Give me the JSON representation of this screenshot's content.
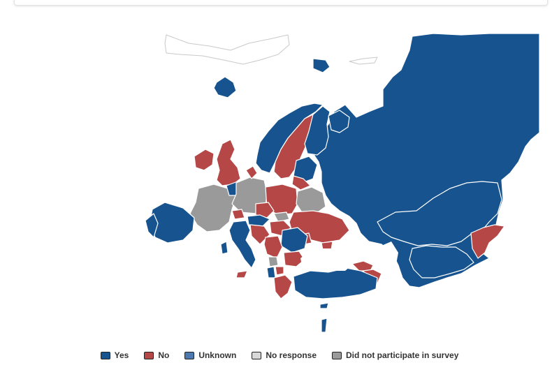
{
  "colors": {
    "yes": "#17548f",
    "no": "#b54747",
    "unknown": "#4e79b0",
    "no_response": "#d8d8d8",
    "not_participated": "#9a9a9a",
    "border": "#ffffff",
    "outline": "#c9c9c9"
  },
  "legend": [
    {
      "key": "yes",
      "label": "Yes",
      "color": "#17548f"
    },
    {
      "key": "no",
      "label": "No",
      "color": "#b54747"
    },
    {
      "key": "unknown",
      "label": "Unknown",
      "color": "#4e79b0"
    },
    {
      "key": "no_response",
      "label": "No response",
      "color": "#d8d8d8"
    },
    {
      "key": "not_participated",
      "label": "Did not participate in survey",
      "color": "#9a9a9a"
    }
  ]
}
